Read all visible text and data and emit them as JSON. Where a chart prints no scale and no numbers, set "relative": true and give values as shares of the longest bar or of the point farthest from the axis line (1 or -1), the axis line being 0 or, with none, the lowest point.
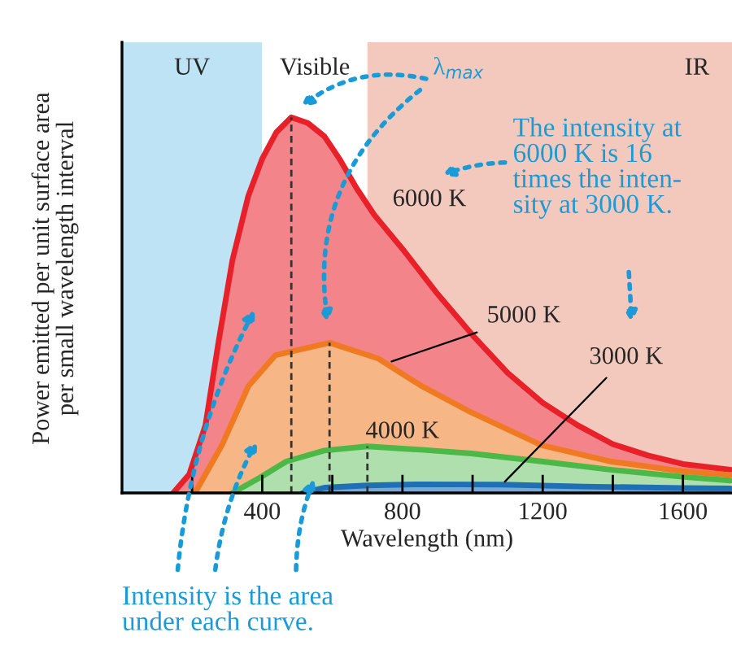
{
  "chart_data": {
    "type": "area",
    "relative": true,
    "xlabel": "Wavelength (nm)",
    "ylabel": "Power emitted per unit surface area\nper small wavelength interval",
    "xlim": [
      0,
      1740
    ],
    "xticks": [
      {
        "value": 200,
        "label": null
      },
      400,
      {
        "value": 600,
        "label": null
      },
      800,
      {
        "value": 1000,
        "label": null
      },
      1200,
      {
        "value": 1400,
        "label": null
      },
      1600
    ],
    "grid": false,
    "legend": false,
    "bands": [
      {
        "axis": "x",
        "from": 0,
        "to": 400,
        "label": "UV",
        "color": "#bde3f5"
      },
      {
        "axis": "x",
        "from": 400,
        "to": 700,
        "label": "Visible",
        "color": "#ffffff"
      },
      {
        "axis": "x",
        "from": 700,
        "to": 1740,
        "label": "IR",
        "color": "#f3c9bd"
      }
    ],
    "series": [
      {
        "name": "6000 K",
        "color": "#e8202a",
        "x": [
          146,
          192,
          238,
          275,
          315,
          360,
          400,
          440,
          483,
          530,
          577,
          620,
          670,
          720,
          800,
          900,
          1000,
          1100,
          1200,
          1300,
          1400,
          1500,
          1600,
          1735
        ],
        "values": [
          0,
          0.05,
          0.18,
          0.4,
          0.62,
          0.79,
          0.89,
          0.96,
          1.0,
          0.985,
          0.95,
          0.89,
          0.81,
          0.74,
          0.65,
          0.53,
          0.42,
          0.32,
          0.24,
          0.18,
          0.13,
          0.1,
          0.077,
          0.062
        ]
      },
      {
        "name": "5000 K",
        "color": "#f07a22",
        "x": [
          208,
          285,
          361,
          438,
          592,
          731,
          854,
          997,
          1197,
          1392,
          1597,
          1735
        ],
        "values": [
          0,
          0.127,
          0.285,
          0.367,
          0.4,
          0.358,
          0.285,
          0.214,
          0.127,
          0.084,
          0.058,
          0.048
        ]
      },
      {
        "name": "4000 K",
        "color": "#4cb848",
        "x": [
          315,
          392,
          469,
          577,
          700,
          854,
          997,
          1197,
          1392,
          1597,
          1735
        ],
        "values": [
          0,
          0.04,
          0.084,
          0.113,
          0.124,
          0.115,
          0.105,
          0.084,
          0.062,
          0.043,
          0.033
        ]
      },
      {
        "name": "3000 K",
        "color": "#1f6fb5",
        "x": [
          515,
          577,
          700,
          854,
          1085,
          1315,
          1597,
          1735
        ],
        "values": [
          0,
          0.014,
          0.02,
          0.023,
          0.022,
          0.017,
          0.013,
          0.012
        ]
      },
      {
        "type": "line",
        "line_style": "dashed",
        "color": "#333333",
        "x": [
          483,
          483
        ],
        "values": [
          0,
          1.0
        ]
      },
      {
        "type": "line",
        "line_style": "dashed",
        "color": "#333333",
        "x": [
          592,
          592
        ],
        "values": [
          0,
          0.4
        ]
      },
      {
        "type": "line",
        "line_style": "dashed",
        "color": "#333333",
        "x": [
          700,
          700
        ],
        "values": [
          0,
          0.124
        ]
      }
    ],
    "annotations": [
      "λ$_{max}$",
      "The intensity at\n6000 K is 16\ntimes the inten-\nsity at 3000 K.",
      "Intensity is the area\nunder each curve."
    ]
  }
}
